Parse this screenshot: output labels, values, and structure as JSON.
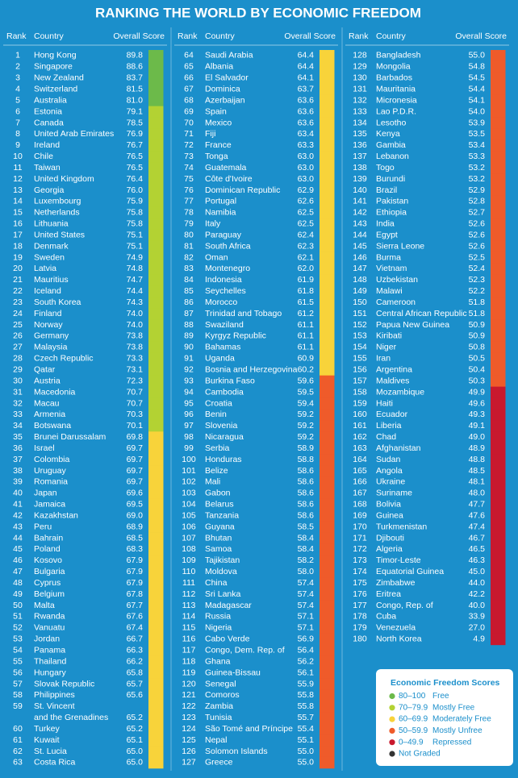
{
  "title": "RANKING THE WORLD BY ECONOMIC FREEDOM",
  "columns": [
    {
      "headers": [
        "Rank",
        "Country",
        "Overall Score"
      ],
      "rows": [
        [
          1,
          "Hong Kong",
          "89.8"
        ],
        [
          2,
          "Singapore",
          "88.6"
        ],
        [
          3,
          "New Zealand",
          "83.7"
        ],
        [
          4,
          "Switzerland",
          "81.5"
        ],
        [
          5,
          "Australia",
          "81.0"
        ],
        [
          6,
          "Estonia",
          "79.1"
        ],
        [
          7,
          "Canada",
          "78.5"
        ],
        [
          8,
          "United Arab Emirates",
          "76.9"
        ],
        [
          9,
          "Ireland",
          "76.7"
        ],
        [
          10,
          "Chile",
          "76.5"
        ],
        [
          11,
          "Taiwan",
          "76.5"
        ],
        [
          12,
          "United Kingdom",
          "76.4"
        ],
        [
          13,
          "Georgia",
          "76.0"
        ],
        [
          14,
          "Luxembourg",
          "75.9"
        ],
        [
          15,
          "Netherlands",
          "75.8"
        ],
        [
          16,
          "Lithuania",
          "75.8"
        ],
        [
          17,
          "United States",
          "75.1"
        ],
        [
          18,
          "Denmark",
          "75.1"
        ],
        [
          19,
          "Sweden",
          "74.9"
        ],
        [
          20,
          "Latvia",
          "74.8"
        ],
        [
          21,
          "Mauritius",
          "74.7"
        ],
        [
          22,
          "Iceland",
          "74.4"
        ],
        [
          23,
          "South Korea",
          "74.3"
        ],
        [
          24,
          "Finland",
          "74.0"
        ],
        [
          25,
          "Norway",
          "74.0"
        ],
        [
          26,
          "Germany",
          "73.8"
        ],
        [
          27,
          "Malaysia",
          "73.8"
        ],
        [
          28,
          "Czech Republic",
          "73.3"
        ],
        [
          29,
          "Qatar",
          "73.1"
        ],
        [
          30,
          "Austria",
          "72.3"
        ],
        [
          31,
          "Macedonia",
          "70.7"
        ],
        [
          32,
          "Macau",
          "70.7"
        ],
        [
          33,
          "Armenia",
          "70.3"
        ],
        [
          34,
          "Botswana",
          "70.1"
        ],
        [
          35,
          "Brunei Darussalam",
          "69.8"
        ],
        [
          36,
          "Israel",
          "69.7"
        ],
        [
          37,
          "Colombia",
          "69.7"
        ],
        [
          38,
          "Uruguay",
          "69.7"
        ],
        [
          39,
          "Romania",
          "69.7"
        ],
        [
          40,
          "Japan",
          "69.6"
        ],
        [
          41,
          "Jamaica",
          "69.5"
        ],
        [
          42,
          "Kazakhstan",
          "69.0"
        ],
        [
          43,
          "Peru",
          "68.9"
        ],
        [
          44,
          "Bahrain",
          "68.5"
        ],
        [
          45,
          "Poland",
          "68.3"
        ],
        [
          46,
          "Kosovo",
          "67.9"
        ],
        [
          47,
          "Bulgaria",
          "67.9"
        ],
        [
          48,
          "Cyprus",
          "67.9"
        ],
        [
          49,
          "Belgium",
          "67.8"
        ],
        [
          50,
          "Malta",
          "67.7"
        ],
        [
          51,
          "Rwanda",
          "67.6"
        ],
        [
          52,
          "Vanuatu",
          "67.4"
        ],
        [
          53,
          "Jordan",
          "66.7"
        ],
        [
          54,
          "Panama",
          "66.3"
        ],
        [
          55,
          "Thailand",
          "66.2"
        ],
        [
          56,
          "Hungary",
          "65.8"
        ],
        [
          57,
          "Slovak Republic",
          "65.7"
        ],
        [
          58,
          "Philippines",
          "65.6"
        ],
        [
          59,
          [
            "St. Vincent",
            "and the Grenadines"
          ],
          "65.2"
        ],
        [
          60,
          "Turkey",
          "65.2"
        ],
        [
          61,
          "Kuwait",
          "65.1"
        ],
        [
          62,
          "St. Lucia",
          "65.0"
        ],
        [
          63,
          "Costa Rica",
          "65.0"
        ]
      ]
    },
    {
      "headers": [
        "Rank",
        "Country",
        "Overall Score"
      ],
      "rows": [
        [
          64,
          "Saudi Arabia",
          "64.4"
        ],
        [
          65,
          "Albania",
          "64.4"
        ],
        [
          66,
          "El Salvador",
          "64.1"
        ],
        [
          67,
          "Dominica",
          "63.7"
        ],
        [
          68,
          "Azerbaijan",
          "63.6"
        ],
        [
          69,
          "Spain",
          "63.6"
        ],
        [
          70,
          "Mexico",
          "63.6"
        ],
        [
          71,
          "Fiji",
          "63.4"
        ],
        [
          72,
          "France",
          "63.3"
        ],
        [
          73,
          "Tonga",
          "63.0"
        ],
        [
          74,
          "Guatemala",
          "63.0"
        ],
        [
          75,
          "Côte d'Ivoire",
          "63.0"
        ],
        [
          76,
          "Dominican Republic",
          "62.9"
        ],
        [
          77,
          "Portugal",
          "62.6"
        ],
        [
          78,
          "Namibia",
          "62.5"
        ],
        [
          79,
          "Italy",
          "62.5"
        ],
        [
          80,
          "Paraguay",
          "62.4"
        ],
        [
          81,
          "South Africa",
          "62.3"
        ],
        [
          82,
          "Oman",
          "62.1"
        ],
        [
          83,
          "Montenegro",
          "62.0"
        ],
        [
          84,
          "Indonesia",
          "61.9"
        ],
        [
          85,
          "Seychelles",
          "61.8"
        ],
        [
          86,
          "Morocco",
          "61.5"
        ],
        [
          87,
          "Trinidad and Tobago",
          "61.2"
        ],
        [
          88,
          "Swaziland",
          "61.1"
        ],
        [
          89,
          "Kyrgyz Republic",
          "61.1"
        ],
        [
          90,
          "Bahamas",
          "61.1"
        ],
        [
          91,
          "Uganda",
          "60.9"
        ],
        [
          92,
          "Bosnia and Herzegovina",
          "60.2"
        ],
        [
          93,
          "Burkina Faso",
          "59.6"
        ],
        [
          94,
          "Cambodia",
          "59.5"
        ],
        [
          95,
          "Croatia",
          "59.4"
        ],
        [
          96,
          "Benin",
          "59.2"
        ],
        [
          97,
          "Slovenia",
          "59.2"
        ],
        [
          98,
          "Nicaragua",
          "59.2"
        ],
        [
          99,
          "Serbia",
          "58.9"
        ],
        [
          100,
          "Honduras",
          "58.8"
        ],
        [
          101,
          "Belize",
          "58.6"
        ],
        [
          102,
          "Mali",
          "58.6"
        ],
        [
          103,
          "Gabon",
          "58.6"
        ],
        [
          104,
          "Belarus",
          "58.6"
        ],
        [
          105,
          "Tanzania",
          "58.6"
        ],
        [
          106,
          "Guyana",
          "58.5"
        ],
        [
          107,
          "Bhutan",
          "58.4"
        ],
        [
          108,
          "Samoa",
          "58.4"
        ],
        [
          109,
          "Tajikistan",
          "58.2"
        ],
        [
          110,
          "Moldova",
          "58.0"
        ],
        [
          111,
          "China",
          "57.4"
        ],
        [
          112,
          "Sri Lanka",
          "57.4"
        ],
        [
          113,
          "Madagascar",
          "57.4"
        ],
        [
          114,
          "Russia",
          "57.1"
        ],
        [
          115,
          "Nigeria",
          "57.1"
        ],
        [
          116,
          "Cabo Verde",
          "56.9"
        ],
        [
          117,
          "Congo, Dem. Rep. of",
          "56.4"
        ],
        [
          118,
          "Ghana",
          "56.2"
        ],
        [
          119,
          "Guinea-Bissau",
          "56.1"
        ],
        [
          120,
          "Senegal",
          "55.9"
        ],
        [
          121,
          "Comoros",
          "55.8"
        ],
        [
          122,
          "Zambia",
          "55.8"
        ],
        [
          123,
          "Tunisia",
          "55.7"
        ],
        [
          124,
          "São Tomé and Príncipe",
          "55.4"
        ],
        [
          125,
          "Nepal",
          "55.1"
        ],
        [
          126,
          "Solomon Islands",
          "55.0"
        ],
        [
          127,
          "Greece",
          "55.0"
        ]
      ]
    },
    {
      "headers": [
        "Rank",
        "Country",
        "Overall Score"
      ],
      "rows": [
        [
          128,
          "Bangladesh",
          "55.0"
        ],
        [
          129,
          "Mongolia",
          "54.8"
        ],
        [
          130,
          "Barbados",
          "54.5"
        ],
        [
          131,
          "Mauritania",
          "54.4"
        ],
        [
          132,
          "Micronesia",
          "54.1"
        ],
        [
          133,
          "Lao P.D.R.",
          "54.0"
        ],
        [
          134,
          "Lesotho",
          "53.9"
        ],
        [
          135,
          "Kenya",
          "53.5"
        ],
        [
          136,
          "Gambia",
          "53.4"
        ],
        [
          137,
          "Lebanon",
          "53.3"
        ],
        [
          138,
          "Togo",
          "53.2"
        ],
        [
          139,
          "Burundi",
          "53.2"
        ],
        [
          140,
          "Brazil",
          "52.9"
        ],
        [
          141,
          "Pakistan",
          "52.8"
        ],
        [
          142,
          "Ethiopia",
          "52.7"
        ],
        [
          143,
          "India",
          "52.6"
        ],
        [
          144,
          "Egypt",
          "52.6"
        ],
        [
          145,
          "Sierra Leone",
          "52.6"
        ],
        [
          146,
          "Burma",
          "52.5"
        ],
        [
          147,
          "Vietnam",
          "52.4"
        ],
        [
          148,
          "Uzbekistan",
          "52.3"
        ],
        [
          149,
          "Malawi",
          "52.2"
        ],
        [
          150,
          "Cameroon",
          "51.8"
        ],
        [
          151,
          "Central African Republic",
          "51.8"
        ],
        [
          152,
          "Papua New Guinea",
          "50.9"
        ],
        [
          153,
          "Kiribati",
          "50.9"
        ],
        [
          154,
          "Niger",
          "50.8"
        ],
        [
          155,
          "Iran",
          "50.5"
        ],
        [
          156,
          "Argentina",
          "50.4"
        ],
        [
          157,
          "Maldives",
          "50.3"
        ],
        [
          158,
          "Mozambique",
          "49.9"
        ],
        [
          159,
          "Haiti",
          "49.6"
        ],
        [
          160,
          "Ecuador",
          "49.3"
        ],
        [
          161,
          "Liberia",
          "49.1"
        ],
        [
          162,
          "Chad",
          "49.0"
        ],
        [
          163,
          "Afghanistan",
          "48.9"
        ],
        [
          164,
          "Sudan",
          "48.8"
        ],
        [
          165,
          "Angola",
          "48.5"
        ],
        [
          166,
          "Ukraine",
          "48.1"
        ],
        [
          167,
          "Suriname",
          "48.0"
        ],
        [
          168,
          "Bolivia",
          "47.7"
        ],
        [
          169,
          "Guinea",
          "47.6"
        ],
        [
          170,
          "Turkmenistan",
          "47.4"
        ],
        [
          171,
          "Djibouti",
          "46.7"
        ],
        [
          172,
          "Algeria",
          "46.5"
        ],
        [
          173,
          "Timor-Leste",
          "46.3"
        ],
        [
          174,
          "Equatorial Guinea",
          "45.0"
        ],
        [
          175,
          "Zimbabwe",
          "44.0"
        ],
        [
          176,
          "Eritrea",
          "42.2"
        ],
        [
          177,
          "Congo, Rep. of",
          "40.0"
        ],
        [
          178,
          "Cuba",
          "33.9"
        ],
        [
          179,
          "Venezuela",
          "27.0"
        ],
        [
          180,
          "North Korea",
          "4.9"
        ]
      ]
    }
  ],
  "legend": {
    "title": "Economic Freedom Scores",
    "items": [
      {
        "range": "80–100",
        "label": "Free",
        "color": "#6cba4a"
      },
      {
        "range": "70–79.9",
        "label": "Mostly Free",
        "color": "#b3d233"
      },
      {
        "range": "60–69.9",
        "label": "Moderately Free",
        "color": "#f8d33a"
      },
      {
        "range": "50–59.9",
        "label": "Mostly Unfree",
        "color": "#ef5b2a"
      },
      {
        "range": "0–49.9",
        "label": "Repressed",
        "color": "#c8192e"
      },
      {
        "label": "Not Graded",
        "color": "#333333"
      }
    ]
  }
}
